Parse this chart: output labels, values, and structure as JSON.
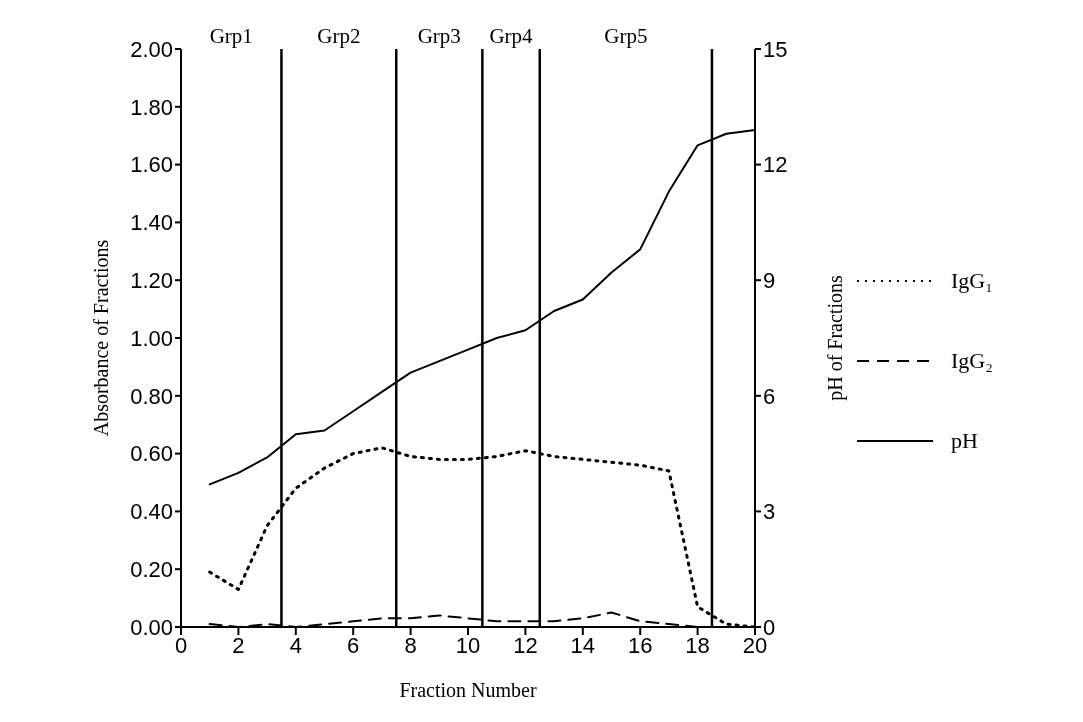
{
  "chart_data": {
    "type": "line",
    "xlabel": "Fraction Number",
    "ylabel": "Absorbance of Fractions",
    "y2label": "pH of Fractions",
    "x": [
      1,
      2,
      3,
      4,
      5,
      6,
      7,
      8,
      9,
      10,
      11,
      12,
      13,
      14,
      15,
      16,
      17,
      18,
      19,
      20
    ],
    "series": [
      {
        "name": "IgG₁",
        "color": "#000000",
        "line_style": "dotted",
        "values": [
          0.19,
          0.13,
          0.35,
          0.48,
          0.55,
          0.6,
          0.62,
          0.59,
          0.58,
          0.58,
          0.59,
          0.61,
          0.59,
          0.58,
          0.57,
          0.56,
          0.54,
          0.07,
          0.01,
          0.0
        ]
      },
      {
        "name": "IgG₂",
        "color": "#000000",
        "line_style": "dashed",
        "values": [
          0.01,
          0.0,
          0.01,
          0.0,
          0.01,
          0.02,
          0.03,
          0.03,
          0.04,
          0.03,
          0.02,
          0.02,
          0.02,
          0.03,
          0.05,
          0.02,
          0.01,
          0.0,
          0.0,
          0.0
        ]
      },
      {
        "name": "pH",
        "color": "#000000",
        "line_style": "solid",
        "axis": "y2",
        "values": [
          3.7,
          4.0,
          4.4,
          5.0,
          5.1,
          5.6,
          6.1,
          6.6,
          6.9,
          7.2,
          7.5,
          7.7,
          8.2,
          8.5,
          9.2,
          9.8,
          11.3,
          12.5,
          12.8,
          12.9
        ]
      }
    ],
    "xlim": [
      0,
      20
    ],
    "xticks": [
      0,
      2,
      4,
      6,
      8,
      10,
      12,
      14,
      16,
      18,
      20
    ],
    "ylim": [
      0,
      2
    ],
    "yticks": [
      {
        "value": 0,
        "label": "0.00"
      },
      {
        "value": 0.2,
        "label": "0.20"
      },
      {
        "value": 0.4,
        "label": "0.40"
      },
      {
        "value": 0.6,
        "label": "0.60"
      },
      {
        "value": 0.8,
        "label": "0.80"
      },
      {
        "value": 1,
        "label": "1.00"
      },
      {
        "value": 1.2,
        "label": "1.20"
      },
      {
        "value": 1.4,
        "label": "1.40"
      },
      {
        "value": 1.6,
        "label": "1.60"
      },
      {
        "value": 1.8,
        "label": "1.80"
      },
      {
        "value": 2,
        "label": "2.00"
      }
    ],
    "y2lim": [
      0,
      15
    ],
    "y2ticks": [
      0,
      3,
      6,
      9,
      12,
      15
    ],
    "ref_lines": [
      {
        "axis": "x",
        "value": 3.5
      },
      {
        "axis": "x",
        "value": 7.5
      },
      {
        "axis": "x",
        "value": 10.5
      },
      {
        "axis": "x",
        "value": 12.5
      },
      {
        "axis": "x",
        "value": 18.5
      }
    ],
    "annotations": [
      "Grp1",
      "Grp2",
      "Grp3",
      "Grp4",
      "Grp5"
    ],
    "grid": false,
    "legend": "right",
    "marker": "none"
  }
}
